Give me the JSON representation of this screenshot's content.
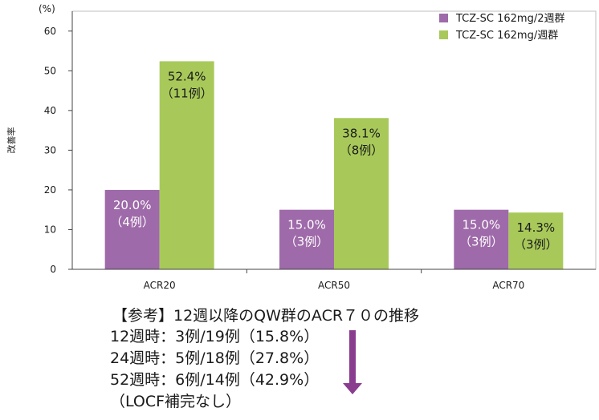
{
  "chart_data": {
    "type": "bar",
    "y_unit_label": "(%)",
    "ylabel": "改善率",
    "ylim": [
      0,
      65
    ],
    "yticks": [
      0,
      10,
      20,
      30,
      40,
      50,
      60
    ],
    "grid": false,
    "legend_position": "top-right",
    "categories": [
      "ACR20",
      "ACR50",
      "ACR70"
    ],
    "series": [
      {
        "name": "TCZ-SC 162mg/2週群",
        "color": "#9e6aa9",
        "values": [
          20.0,
          15.0,
          15.0
        ],
        "labels": [
          [
            "20.0%",
            "（4例）"
          ],
          [
            "15.0%",
            "（3例）"
          ],
          [
            "15.0%",
            "（3例）"
          ]
        ]
      },
      {
        "name": "TCZ-SC 162mg/週群",
        "color": "#a8c95a",
        "values": [
          52.4,
          38.1,
          14.3
        ],
        "labels": [
          [
            "52.4%",
            "（11例）"
          ],
          [
            "38.1%",
            "（8例）"
          ],
          [
            "14.3%",
            "（3例）"
          ]
        ]
      }
    ]
  },
  "note": {
    "title": "【参考】12週以降のQW群のACR７０の推移",
    "lines": [
      "12週時：3例/19例（15.8%）",
      "24週時：5例/18例（27.8%）",
      "52週時：6例/14例（42.9%）",
      "（LOCF補完なし）"
    ],
    "arrow_color": "#8a3d8f"
  }
}
